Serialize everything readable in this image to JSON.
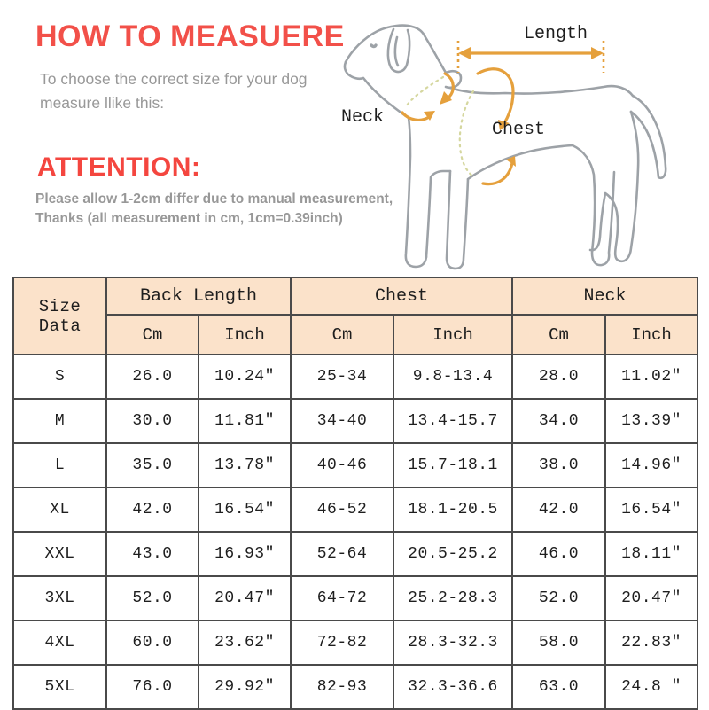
{
  "theme": {
    "title_red": "#f25049",
    "attention_red": "#f4463f",
    "gray_text": "#989898",
    "table_border": "#4a4a4a",
    "header_bg": "#fbe2ca",
    "orange": "#e5a03c",
    "dog_gray": "#9da2a7",
    "dotted_green": "#d5d79f",
    "text_dark": "#1e1e1e"
  },
  "header": {
    "title": "HOW TO MEASUERE",
    "subtitle": [
      "To choose the correct size for your dog",
      "measure llike this:"
    ],
    "attention_title": "ATTENTION:",
    "attention_lines": [
      "Please allow 1-2cm differ due to manual measurement,",
      "Thanks (all measurement in cm, 1cm=0.39inch)"
    ]
  },
  "diagram": {
    "length_label": "Length",
    "neck_label": "Neck",
    "chest_label": "Chest"
  },
  "size_table": {
    "corner_label": "Size Data",
    "groups": [
      {
        "label": "Back Length"
      },
      {
        "label": "Chest"
      },
      {
        "label": "Neck"
      }
    ],
    "units": [
      "Cm",
      "Inch",
      "Cm",
      "Inch",
      "Cm",
      "Inch"
    ],
    "rows": [
      {
        "size": "S",
        "cells": [
          "26.0",
          "10.24″",
          "25-34",
          "9.8-13.4",
          "28.0",
          "11.02″"
        ]
      },
      {
        "size": "M",
        "cells": [
          "30.0",
          "11.81″",
          "34-40",
          "13.4-15.7",
          "34.0",
          "13.39″"
        ]
      },
      {
        "size": "L",
        "cells": [
          "35.0",
          "13.78″",
          "40-46",
          "15.7-18.1",
          "38.0",
          "14.96″"
        ]
      },
      {
        "size": "XL",
        "cells": [
          "42.0",
          "16.54″",
          "46-52",
          "18.1-20.5",
          "42.0",
          "16.54″"
        ]
      },
      {
        "size": "XXL",
        "cells": [
          "43.0",
          "16.93″",
          "52-64",
          "20.5-25.2",
          "46.0",
          "18.11″"
        ]
      },
      {
        "size": "3XL",
        "cells": [
          "52.0",
          "20.47″",
          "64-72",
          "25.2-28.3",
          "52.0",
          "20.47″"
        ]
      },
      {
        "size": "4XL",
        "cells": [
          "60.0",
          "23.62″",
          "72-82",
          "28.3-32.3",
          "58.0",
          "22.83″"
        ]
      },
      {
        "size": "5XL",
        "cells": [
          "76.0",
          "29.92″",
          "82-93",
          "32.3-36.6",
          "63.0",
          "24.8 ″"
        ]
      }
    ]
  }
}
